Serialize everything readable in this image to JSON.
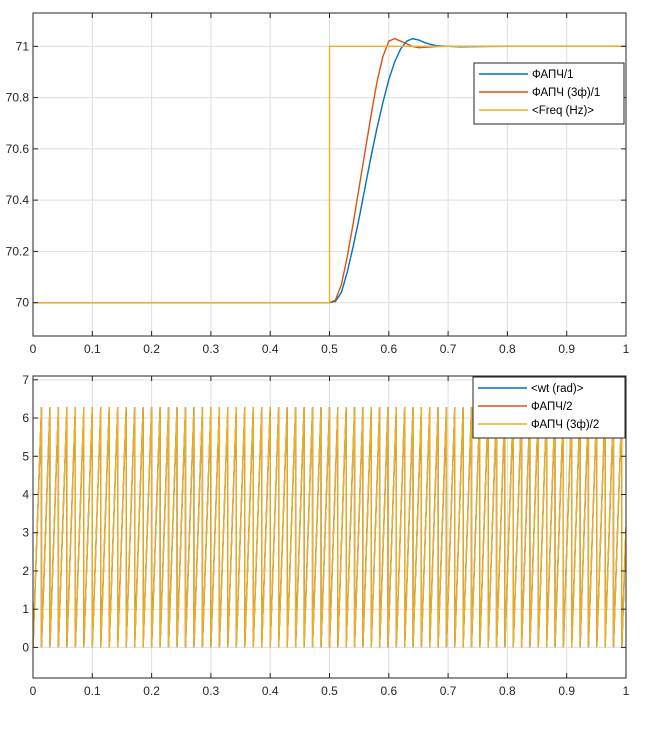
{
  "chart_data": [
    {
      "type": "line",
      "xlim": [
        0,
        1
      ],
      "ylim": [
        69.87,
        71.13
      ],
      "x_ticks": [
        "0",
        "0.1",
        "0.2",
        "0.3",
        "0.4",
        "0.5",
        "0.6",
        "0.7",
        "0.8",
        "0.9",
        "1"
      ],
      "y_ticks": [
        "70",
        "70.2",
        "70.4",
        "70.6",
        "70.8",
        "71"
      ],
      "grid": true,
      "legend_position": "top-right",
      "series": [
        {
          "name": "ФАПЧ/1",
          "color": "#0072BD",
          "x": [
            0,
            0.5,
            0.51,
            0.52,
            0.53,
            0.54,
            0.55,
            0.56,
            0.57,
            0.58,
            0.59,
            0.6,
            0.61,
            0.62,
            0.63,
            0.64,
            0.65,
            0.66,
            0.67,
            0.68,
            0.7,
            0.72,
            0.75,
            0.8,
            1
          ],
          "y": [
            70,
            70,
            70.005,
            70.04,
            70.12,
            70.22,
            70.33,
            70.45,
            70.57,
            70.68,
            70.78,
            70.87,
            70.94,
            70.99,
            71.02,
            71.03,
            71.025,
            71.015,
            71.008,
            71.003,
            71.0,
            70.998,
            70.999,
            71.0,
            71.0
          ]
        },
        {
          "name": "ФАПЧ (3ф)/1",
          "color": "#D95319",
          "x": [
            0,
            0.5,
            0.51,
            0.52,
            0.53,
            0.54,
            0.55,
            0.56,
            0.57,
            0.58,
            0.59,
            0.6,
            0.61,
            0.62,
            0.63,
            0.64,
            0.65,
            0.66,
            0.68,
            0.7,
            0.75,
            0.8,
            1
          ],
          "y": [
            70,
            70,
            70.01,
            70.07,
            70.18,
            70.31,
            70.45,
            70.59,
            70.73,
            70.86,
            70.96,
            71.02,
            71.03,
            71.02,
            71.01,
            71.0,
            70.995,
            70.996,
            70.999,
            71.0,
            71.0,
            71.0,
            71.0
          ]
        },
        {
          "name": "<Freq (Hz)>",
          "color": "#EDB120",
          "x": [
            0,
            0.5,
            0.5,
            1
          ],
          "y": [
            70,
            70,
            71,
            71
          ]
        }
      ]
    },
    {
      "type": "line",
      "xlim": [
        0,
        1
      ],
      "ylim": [
        -0.8,
        7.1
      ],
      "x_ticks": [
        "0",
        "0.1",
        "0.2",
        "0.3",
        "0.4",
        "0.5",
        "0.6",
        "0.7",
        "0.8",
        "0.9",
        "1"
      ],
      "y_ticks": [
        "0",
        "1",
        "2",
        "3",
        "4",
        "5",
        "6",
        "7"
      ],
      "grid": true,
      "legend_position": "top-right",
      "sawtooth": {
        "min": 0,
        "max": 6.2832,
        "before_step_hz": 70,
        "after_step_hz": 71,
        "step_time": 0.5
      },
      "series": [
        {
          "name": "<wt (rad)>",
          "color": "#0072BD"
        },
        {
          "name": "ФАПЧ/2",
          "color": "#D95319"
        },
        {
          "name": "ФАПЧ (3ф)/2",
          "color": "#EDB120"
        }
      ]
    }
  ]
}
